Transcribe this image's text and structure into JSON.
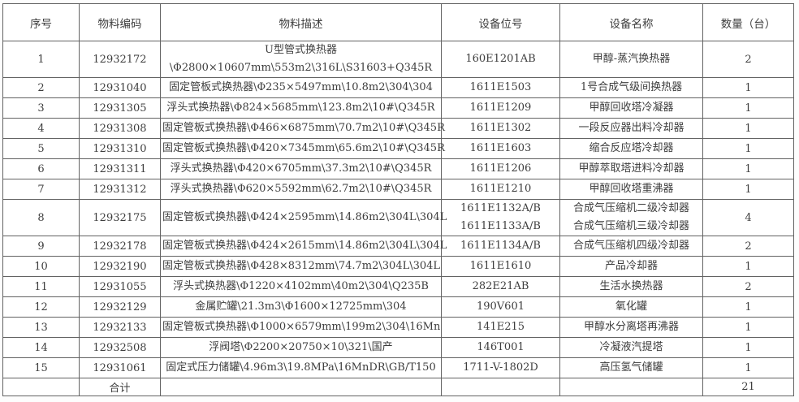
{
  "colors": {
    "border": "#636363",
    "text": "#3d3d3d",
    "background": "#ffffff"
  },
  "table": {
    "headers": [
      "序号",
      "物料编码",
      "物料描述",
      "设备位号",
      "设备名称",
      "数量（台）"
    ],
    "rows": [
      {
        "no": "1",
        "code": "12932172",
        "desc": [
          "U型管式换热器",
          "\\Φ2800×10607mm\\553m2\\316L\\S31603+Q345R"
        ],
        "tag": [
          "160E1201AB"
        ],
        "name": [
          "甲醇-蒸汽换热器"
        ],
        "qty": "2"
      },
      {
        "no": "2",
        "code": "12931040",
        "desc": [
          "固定管板式换热器\\Φ235×5497mm\\10.8m2\\304\\304"
        ],
        "tag": [
          "1611E1503"
        ],
        "name": [
          "1号合成气级间换热器"
        ],
        "qty": "1"
      },
      {
        "no": "3",
        "code": "12931305",
        "desc": [
          "浮头式换热器\\Φ824×5685mm\\123.8m2\\10#\\Q345R"
        ],
        "tag": [
          "1611E1209"
        ],
        "name": [
          "甲醇回收塔冷凝器"
        ],
        "qty": "1"
      },
      {
        "no": "4",
        "code": "12931308",
        "desc": [
          "固定管板式换热器\\Φ466×6875mm\\70.7m2\\10#\\Q345R"
        ],
        "tag": [
          "1611E1302"
        ],
        "name": [
          "一段反应器出料冷却器"
        ],
        "qty": "1"
      },
      {
        "no": "5",
        "code": "12931310",
        "desc": [
          "固定管板式换热器\\Φ420×7345mm\\65.6m2\\10#\\Q345R"
        ],
        "tag": [
          "1611E1603"
        ],
        "name": [
          "缩合反应塔冷却器"
        ],
        "qty": "1"
      },
      {
        "no": "6",
        "code": "12931311",
        "desc": [
          "浮头式换热器\\Φ420×6705mm\\37.3m2\\10#\\Q345R"
        ],
        "tag": [
          "1611E1206"
        ],
        "name": [
          "甲醇萃取塔进料冷却器"
        ],
        "qty": "1"
      },
      {
        "no": "7",
        "code": "12931312",
        "desc": [
          "浮头式换热器\\Φ620×5592mm\\62.7m2\\10#\\Q345R"
        ],
        "tag": [
          "1611E1210"
        ],
        "name": [
          "甲醇回收塔重沸器"
        ],
        "qty": "1"
      },
      {
        "no": "8",
        "code": "12932175",
        "desc": [
          "固定管板式换热器\\Φ424×2595mm\\14.86m2\\304L\\304L"
        ],
        "tag": [
          "1611E1132A/B",
          "1611E1133A/B"
        ],
        "name": [
          "合成气压缩机二级冷却器",
          "合成气压缩机三级冷却器"
        ],
        "qty": "4"
      },
      {
        "no": "9",
        "code": "12932178",
        "desc": [
          "固定管板式换热器\\Φ424×2615mm\\14.86m2\\304L\\304L"
        ],
        "tag": [
          "1611E1134A/B"
        ],
        "name": [
          "合成气压缩机四级冷却器"
        ],
        "qty": "2"
      },
      {
        "no": "10",
        "code": "12932190",
        "desc": [
          "固定管板式换热器\\Φ428×8312mm\\74.7m2\\304L\\304L"
        ],
        "tag": [
          "1611E1610"
        ],
        "name": [
          "产品冷却器"
        ],
        "qty": "1"
      },
      {
        "no": "11",
        "code": "12931055",
        "desc": [
          "浮头式换热器\\Φ1220×4102mm\\40m2\\304\\Q235B"
        ],
        "tag": [
          "282E21AB"
        ],
        "name": [
          "生活水换热器"
        ],
        "qty": "2"
      },
      {
        "no": "12",
        "code": "12932129",
        "desc": [
          "金属贮罐\\21.3m3\\Φ1600×12725mm\\304"
        ],
        "tag": [
          "190V601"
        ],
        "name": [
          "氧化罐"
        ],
        "qty": "1"
      },
      {
        "no": "13",
        "code": "12932133",
        "desc": [
          "固定管板式换热器\\Φ1000×6579mm\\199m2\\304\\16Mn"
        ],
        "tag": [
          "141E215"
        ],
        "name": [
          "甲醇水分离塔再沸器"
        ],
        "qty": "1"
      },
      {
        "no": "14",
        "code": "12932508",
        "desc": [
          "浮阀塔\\Φ2200×20750×10\\321\\国产"
        ],
        "tag": [
          "146T001"
        ],
        "name": [
          "冷凝液汽提塔"
        ],
        "qty": "1"
      },
      {
        "no": "15",
        "code": "12931061",
        "desc": [
          "固定式压力储罐\\4.96m3\\19.8MPa\\16MnDR\\GB/T150"
        ],
        "tag": [
          "1711-V-1802D"
        ],
        "name": [
          "高压氢气储罐"
        ],
        "qty": "1"
      }
    ],
    "footer": {
      "label": "合计",
      "total": "21"
    }
  }
}
